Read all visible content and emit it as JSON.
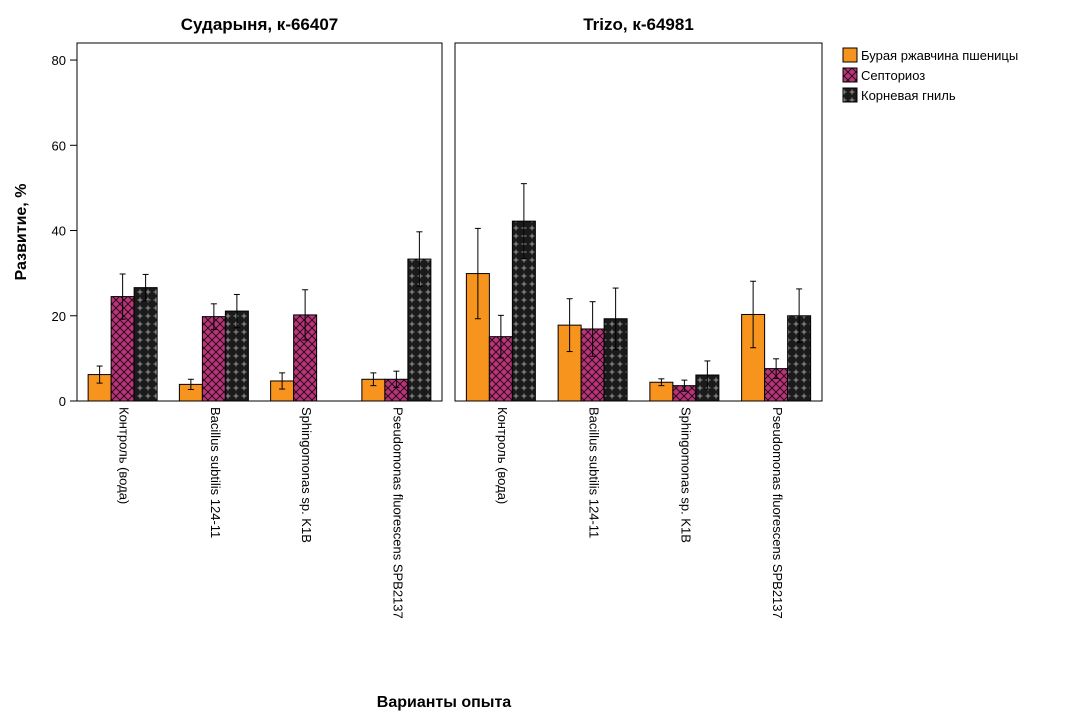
{
  "chart_data": {
    "type": "bar",
    "ylabel": "Развитие, %",
    "xlabel": "Варианты опыта",
    "ylim": [
      0,
      84
    ],
    "yticks": [
      0,
      20,
      40,
      60,
      80
    ],
    "grid": false,
    "legend_position": "top-right",
    "categories": [
      "Контроль (вода)",
      "Bacillus subtilis 124-11",
      "Sphingomonas sp. K1B",
      "Pseudomonas fluorescens SPB2137"
    ],
    "series_styles": [
      {
        "name": "Бурая ржавчина пшеницы",
        "color": "#f7941d",
        "pattern": "solid"
      },
      {
        "name": "Септориоз",
        "color": "#b8357a",
        "pattern": "crosshatch"
      },
      {
        "name": "Корневая гниль",
        "color": "#1a1a1a",
        "pattern": "plus"
      }
    ],
    "panels": [
      {
        "title": "Сударыня, к-66407",
        "series": [
          {
            "name": "Бурая ржавчина пшеницы",
            "values": [
              6.2,
              3.9,
              4.7,
              5.1
            ],
            "errors": [
              2.0,
              1.2,
              1.9,
              1.5
            ]
          },
          {
            "name": "Септориоз",
            "values": [
              24.5,
              19.8,
              20.2,
              5.1
            ],
            "errors": [
              5.3,
              3.0,
              5.9,
              1.9
            ]
          },
          {
            "name": "Корневая гниль",
            "values": [
              26.6,
              21.1,
              0,
              33.3
            ],
            "errors": [
              3.1,
              3.9,
              0,
              6.4
            ]
          }
        ]
      },
      {
        "title": "Trizo, к-64981",
        "series": [
          {
            "name": "Бурая ржавчина пшеницы",
            "values": [
              29.9,
              17.8,
              4.4,
              20.3
            ],
            "errors": [
              10.6,
              6.2,
              0.8,
              7.8
            ]
          },
          {
            "name": "Септориоз",
            "values": [
              15.1,
              16.9,
              3.6,
              7.6
            ],
            "errors": [
              5.0,
              6.4,
              1.3,
              2.3
            ]
          },
          {
            "name": "Корневая гниль",
            "values": [
              42.2,
              19.3,
              6.1,
              20.0
            ],
            "errors": [
              8.8,
              7.2,
              3.3,
              6.3
            ]
          }
        ]
      }
    ]
  }
}
